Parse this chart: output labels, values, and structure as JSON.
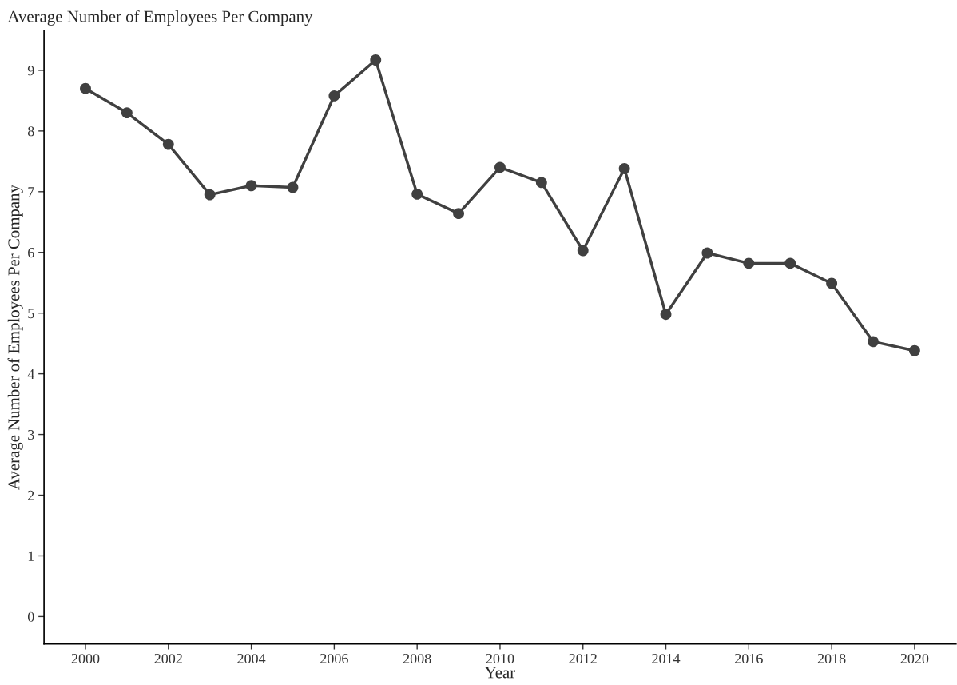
{
  "chart_data": {
    "type": "line",
    "title": "Average Number of Employees Per Company",
    "xlabel": "Year",
    "ylabel": "Average Number of Employees Per Company",
    "x": [
      2000,
      2001,
      2002,
      2003,
      2004,
      2005,
      2006,
      2007,
      2008,
      2009,
      2010,
      2011,
      2012,
      2013,
      2014,
      2015,
      2016,
      2017,
      2018,
      2019,
      2020
    ],
    "series": [
      {
        "color": "#404040",
        "values": [
          8.7,
          8.3,
          7.78,
          6.95,
          7.1,
          7.07,
          8.58,
          9.17,
          6.96,
          6.64,
          7.4,
          7.15,
          6.03,
          7.38,
          4.98,
          5.99,
          5.82,
          5.82,
          5.49,
          4.53,
          4.38
        ]
      }
    ],
    "xlim": [
      1999.0,
      2021.0
    ],
    "xticks": [
      2000,
      2002,
      2004,
      2006,
      2008,
      2010,
      2012,
      2014,
      2016,
      2018,
      2020
    ],
    "ylim": [
      -0.45,
      9.65
    ],
    "yticks": [
      0,
      1,
      2,
      3,
      4,
      5,
      6,
      7,
      8,
      9
    ],
    "grid": false,
    "marker": "circle",
    "line_style": "solid"
  }
}
